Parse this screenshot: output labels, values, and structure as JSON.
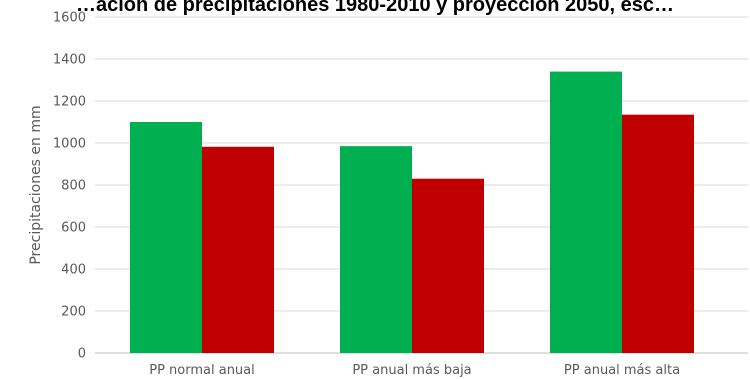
{
  "chart_data": {
    "type": "bar",
    "title": "…ación de precipitaciones 1980-2010 y proyección 2050, esc…",
    "xlabel": "",
    "ylabel": "Precipitaciones en mm",
    "categories": [
      "PP normal anual",
      "PP anual más baja",
      "PP anual más alta"
    ],
    "series": [
      {
        "values": [
          1100,
          985,
          1340
        ],
        "color": "#00b050"
      },
      {
        "values": [
          982,
          830,
          1135
        ],
        "color": "#c00000"
      }
    ],
    "ylim": [
      0,
      1600
    ],
    "yticks": [
      0,
      200,
      400,
      600,
      800,
      1000,
      1200,
      1400,
      1600
    ],
    "grid": true,
    "legend": "none"
  }
}
